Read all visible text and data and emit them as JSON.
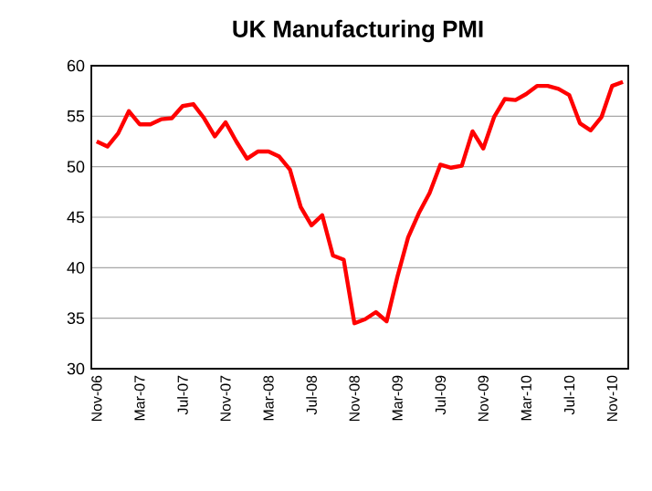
{
  "chart_data": {
    "type": "line",
    "title": "UK Manufacturing PMI",
    "categories": [
      "Nov-06",
      null,
      null,
      null,
      "Mar-07",
      null,
      null,
      null,
      "Jul-07",
      null,
      null,
      null,
      "Nov-07",
      null,
      null,
      null,
      "Mar-08",
      null,
      null,
      null,
      "Jul-08",
      null,
      null,
      null,
      "Nov-08",
      null,
      null,
      null,
      "Mar-09",
      null,
      null,
      null,
      "Jul-09",
      null,
      null,
      null,
      "Nov-09",
      null,
      null,
      null,
      "Mar-10",
      null,
      null,
      null,
      "Jul-10",
      null,
      null,
      null,
      "Nov-10",
      null
    ],
    "series": [
      {
        "color": "#ff0000",
        "values": [
          52.5,
          52.0,
          53.3,
          55.5,
          54.2,
          54.2,
          54.7,
          54.8,
          56.0,
          56.2,
          54.8,
          53.0,
          54.4,
          52.5,
          50.8,
          51.5,
          51.5,
          51.0,
          49.7,
          46.0,
          44.2,
          45.2,
          41.2,
          40.8,
          34.5,
          34.9,
          35.6,
          34.7,
          39.1,
          43.0,
          45.4,
          47.4,
          50.2,
          49.9,
          50.1,
          53.5,
          51.8,
          54.9,
          56.7,
          56.6,
          57.2,
          58.0,
          58.0,
          57.7,
          57.1,
          54.3,
          53.6,
          54.9,
          58.0,
          58.4
        ]
      }
    ],
    "ylim": [
      30,
      60
    ],
    "yticks": [
      30,
      35,
      40,
      45,
      50,
      55,
      60
    ],
    "grid": "y",
    "marker": "none",
    "line_style": "solid"
  }
}
